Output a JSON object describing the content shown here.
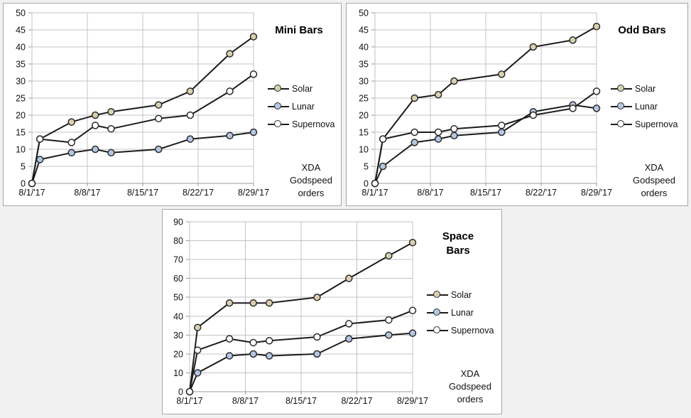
{
  "page": {
    "background": "#f1f1f1"
  },
  "colors": {
    "panel_bg": "#ffffff",
    "panel_border": "#a6a6a6",
    "grid": "#c3c3c3",
    "axis": "#9a9a9a",
    "line": "#1c1c1c",
    "marker_stroke": "#2b2b2b",
    "text": "#111111",
    "solar": "#d9d0ae",
    "lunar": "#b4c7e1",
    "supernova": "#ffffff"
  },
  "footnote": {
    "line1": "XDA",
    "line2": "Godspeed",
    "line3": "orders"
  },
  "chart_data": [
    {
      "type": "line",
      "title": "Mini Bars",
      "title_lines": [
        "Mini Bars"
      ],
      "xlabel": "",
      "ylabel": "",
      "ylim": [
        0,
        50
      ],
      "ytick_step": 5,
      "xlim_days": [
        0,
        28
      ],
      "x_tick_days": [
        0,
        7,
        14,
        21,
        28
      ],
      "x_tick_labels": [
        "8/1/'17",
        "8/8/'17",
        "8/15/'17",
        "8/22/'17",
        "8/29/'17"
      ],
      "x_days": [
        0,
        1,
        5,
        8,
        10,
        16,
        20,
        25,
        28
      ],
      "grid": true,
      "legend_position": "right",
      "series": [
        {
          "name": "Solar",
          "color_key": "solar",
          "values": [
            0,
            13,
            18,
            20,
            21,
            23,
            27,
            38,
            43
          ]
        },
        {
          "name": "Lunar",
          "color_key": "lunar",
          "values": [
            0,
            7,
            9,
            10,
            9,
            10,
            13,
            14,
            15
          ]
        },
        {
          "name": "Supernova",
          "color_key": "supernova",
          "values": [
            0,
            13,
            12,
            17,
            16,
            19,
            20,
            27,
            32
          ]
        }
      ]
    },
    {
      "type": "line",
      "title": "Odd Bars",
      "title_lines": [
        "Odd Bars"
      ],
      "xlabel": "",
      "ylabel": "",
      "ylim": [
        0,
        50
      ],
      "ytick_step": 5,
      "xlim_days": [
        0,
        28
      ],
      "x_tick_days": [
        0,
        7,
        14,
        21,
        28
      ],
      "x_tick_labels": [
        "8/1/'17",
        "8/8/'17",
        "8/15/'17",
        "8/22/'17",
        "8/29/'17"
      ],
      "x_days": [
        0,
        1,
        5,
        8,
        10,
        16,
        20,
        25,
        28
      ],
      "grid": true,
      "legend_position": "right",
      "series": [
        {
          "name": "Solar",
          "color_key": "solar",
          "values": [
            0,
            13,
            25,
            26,
            30,
            32,
            40,
            42,
            46
          ]
        },
        {
          "name": "Lunar",
          "color_key": "lunar",
          "values": [
            0,
            5,
            12,
            13,
            14,
            15,
            21,
            23,
            22
          ]
        },
        {
          "name": "Supernova",
          "color_key": "supernova",
          "values": [
            0,
            13,
            15,
            15,
            16,
            17,
            20,
            22,
            27
          ]
        }
      ]
    },
    {
      "type": "line",
      "title": "Space Bars",
      "title_lines": [
        "Space",
        "Bars"
      ],
      "xlabel": "",
      "ylabel": "",
      "ylim": [
        0,
        90
      ],
      "ytick_step": 10,
      "xlim_days": [
        0,
        28
      ],
      "x_tick_days": [
        0,
        7,
        14,
        21,
        28
      ],
      "x_tick_labels": [
        "8/1/'17",
        "8/8/'17",
        "8/15/'17",
        "8/22/'17",
        "8/29/'17"
      ],
      "x_days": [
        0,
        1,
        5,
        8,
        10,
        16,
        20,
        25,
        28
      ],
      "grid": true,
      "legend_position": "right",
      "series": [
        {
          "name": "Solar",
          "color_key": "solar",
          "values": [
            0,
            34,
            47,
            47,
            47,
            50,
            60,
            72,
            79
          ]
        },
        {
          "name": "Lunar",
          "color_key": "lunar",
          "values": [
            0,
            10,
            19,
            20,
            19,
            20,
            28,
            30,
            31
          ]
        },
        {
          "name": "Supernova",
          "color_key": "supernova",
          "values": [
            0,
            22,
            28,
            26,
            27,
            29,
            36,
            38,
            43
          ]
        }
      ]
    }
  ]
}
